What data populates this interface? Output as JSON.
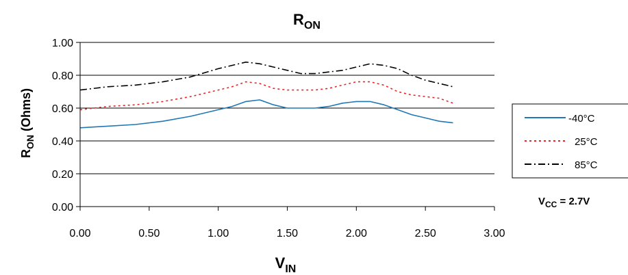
{
  "chart_data": {
    "type": "line",
    "title_main": "R",
    "title_sub": "ON",
    "xlabel_main": "V",
    "xlabel_sub": "IN",
    "ylabel_main": "R",
    "ylabel_sub": "ON",
    "ylabel_rest": " (Ohms)",
    "xlim": [
      0,
      3
    ],
    "ylim": [
      0,
      1
    ],
    "x_ticks": [
      "0.00",
      "0.50",
      "1.00",
      "1.50",
      "2.00",
      "2.50",
      "3.00"
    ],
    "y_ticks": [
      "0.00",
      "0.20",
      "0.40",
      "0.60",
      "0.80",
      "1.00"
    ],
    "grid": "horizontal",
    "legend_position": "right",
    "annotation": {
      "main": "V",
      "sub": "CC",
      "rest": " = 2.7V"
    },
    "series": [
      {
        "name": "-40°C",
        "color": "#1f77b4",
        "dash": "solid",
        "x": [
          0,
          0.2,
          0.4,
          0.6,
          0.8,
          1.0,
          1.1,
          1.2,
          1.3,
          1.4,
          1.5,
          1.6,
          1.7,
          1.8,
          1.9,
          2.0,
          2.1,
          2.2,
          2.3,
          2.4,
          2.5,
          2.6,
          2.7
        ],
        "y": [
          0.48,
          0.49,
          0.5,
          0.52,
          0.55,
          0.59,
          0.61,
          0.64,
          0.65,
          0.62,
          0.6,
          0.6,
          0.6,
          0.61,
          0.63,
          0.64,
          0.64,
          0.62,
          0.59,
          0.56,
          0.54,
          0.52,
          0.51
        ]
      },
      {
        "name": "25°C",
        "color": "#e32626",
        "dash": "dotted",
        "x": [
          0,
          0.2,
          0.4,
          0.6,
          0.8,
          1.0,
          1.1,
          1.2,
          1.3,
          1.4,
          1.5,
          1.6,
          1.7,
          1.8,
          1.9,
          2.0,
          2.1,
          2.2,
          2.3,
          2.4,
          2.5,
          2.6,
          2.7
        ],
        "y": [
          0.59,
          0.61,
          0.62,
          0.64,
          0.67,
          0.71,
          0.73,
          0.76,
          0.75,
          0.72,
          0.71,
          0.71,
          0.71,
          0.72,
          0.74,
          0.76,
          0.76,
          0.74,
          0.7,
          0.68,
          0.67,
          0.66,
          0.63
        ]
      },
      {
        "name": "85°C",
        "color": "#000000",
        "dash": "dashdot",
        "x": [
          0,
          0.2,
          0.4,
          0.6,
          0.8,
          1.0,
          1.1,
          1.2,
          1.3,
          1.4,
          1.5,
          1.6,
          1.7,
          1.8,
          1.9,
          2.0,
          2.1,
          2.2,
          2.3,
          2.4,
          2.5,
          2.6,
          2.7
        ],
        "y": [
          0.71,
          0.73,
          0.74,
          0.76,
          0.79,
          0.84,
          0.86,
          0.88,
          0.87,
          0.85,
          0.83,
          0.81,
          0.81,
          0.82,
          0.83,
          0.85,
          0.87,
          0.86,
          0.84,
          0.8,
          0.77,
          0.75,
          0.73
        ]
      }
    ]
  }
}
